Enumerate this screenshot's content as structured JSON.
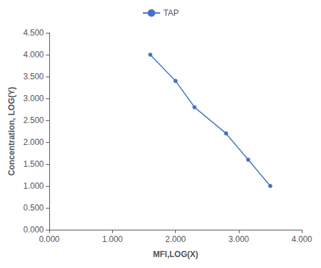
{
  "chart_data": {
    "type": "line",
    "x": [
      1.6,
      2.0,
      2.3,
      2.8,
      3.15,
      3.5
    ],
    "series": [
      {
        "name": "TAP",
        "color": "#4472C4",
        "marker": "circle",
        "values": [
          4.0,
          3.4,
          2.8,
          2.2,
          1.6,
          1.0
        ]
      }
    ],
    "xlabel": "MFI,LOG(X)",
    "ylabel": "Concentration, LOG(Y)",
    "xlim": [
      0.0,
      4.0
    ],
    "ylim": [
      0.0,
      4.5
    ],
    "xticks": [
      {
        "value": 0.0,
        "label": "0.000"
      },
      {
        "value": 1.0,
        "label": "1.000"
      },
      {
        "value": 2.0,
        "label": "2.000"
      },
      {
        "value": 3.0,
        "label": "3.000"
      },
      {
        "value": 4.0,
        "label": "4.000"
      }
    ],
    "yticks": [
      {
        "value": 0.0,
        "label": "0.000"
      },
      {
        "value": 0.5,
        "label": "0.500"
      },
      {
        "value": 1.0,
        "label": "1.000"
      },
      {
        "value": 1.5,
        "label": "1.500"
      },
      {
        "value": 2.0,
        "label": "2.000"
      },
      {
        "value": 2.5,
        "label": "2.500"
      },
      {
        "value": 3.0,
        "label": "3.000"
      },
      {
        "value": 3.5,
        "label": "3.500"
      },
      {
        "value": 4.0,
        "label": "4.000"
      },
      {
        "value": 4.5,
        "label": "4.500"
      }
    ],
    "grid": false,
    "legend": "top"
  }
}
